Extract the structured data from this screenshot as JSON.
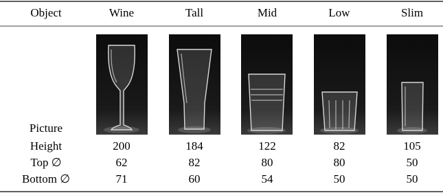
{
  "table": {
    "header": [
      "Object",
      "Wine",
      "Tall",
      "Mid",
      "Low",
      "Slim"
    ],
    "rows": [
      [
        "Picture"
      ],
      [
        "Height",
        200,
        184,
        122,
        82,
        105
      ],
      [
        "Top ∅",
        62,
        82,
        80,
        80,
        50
      ],
      [
        "Bottom ∅",
        71,
        60,
        54,
        50,
        50
      ]
    ]
  }
}
